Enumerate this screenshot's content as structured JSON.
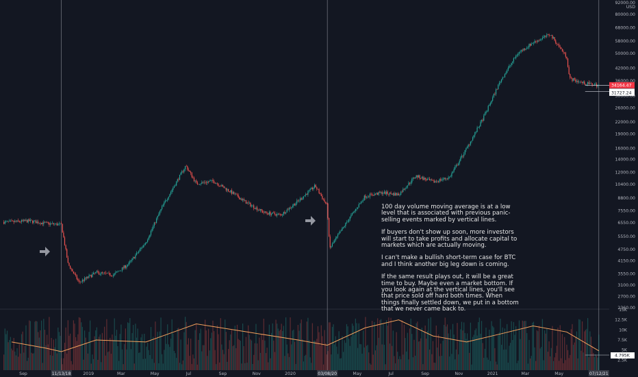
{
  "chart_data": {
    "type": "candlestick",
    "symbol_panel": "BTC price with 100 day volume moving average",
    "axis_unit": "USD",
    "y_axis_labels": [
      "92000.00",
      "80000.00",
      "68000.00",
      "58000.00",
      "50000.00",
      "42000.00",
      "36000.00",
      "30000.00",
      "26000.00",
      "22000.00",
      "19000.00",
      "16000.00",
      "14000.00",
      "12000.00",
      "10400.00",
      "8800.00",
      "7550.00",
      "6550.00",
      "5550.00",
      "4750.00",
      "4150.00",
      "3550.00",
      "3100.00",
      "2700.00",
      "2360.00"
    ],
    "volume_axis_labels": [
      "15K",
      "12.5K",
      "10K",
      "7.5K",
      "5K",
      "2.5K"
    ],
    "x_axis_labels": [
      "Sep",
      "11/13/18",
      "2019",
      "Mar",
      "May",
      "Jul",
      "Sep",
      "Nov",
      "2020",
      "03/08/20",
      "May",
      "Jul",
      "Sep",
      "Nov",
      "2021",
      "Mar",
      "May",
      "07/12/21"
    ],
    "price_tags": {
      "current": "34164.47",
      "level_1": "34162.00",
      "level_2": "31727.24",
      "volume_ma": "4.795K"
    },
    "price_path": [
      [
        "2018-08",
        6600
      ],
      [
        "2018-09",
        6700
      ],
      [
        "2018-10",
        6500
      ],
      [
        "2018-11-13",
        6400
      ],
      [
        "2018-11-25",
        4000
      ],
      [
        "2018-12-15",
        3200
      ],
      [
        "2019-01",
        3600
      ],
      [
        "2019-02",
        3500
      ],
      [
        "2019-03",
        4000
      ],
      [
        "2019-04",
        5200
      ],
      [
        "2019-05",
        8000
      ],
      [
        "2019-06-26",
        13000
      ],
      [
        "2019-07",
        10500
      ],
      [
        "2019-08",
        10800
      ],
      [
        "2019-09",
        9500
      ],
      [
        "2019-10",
        8300
      ],
      [
        "2019-11",
        7400
      ],
      [
        "2019-12",
        7200
      ],
      [
        "2020-01",
        8500
      ],
      [
        "2020-02",
        10200
      ],
      [
        "2020-03-08",
        8000
      ],
      [
        "2020-03-12",
        4800
      ],
      [
        "2020-04",
        6800
      ],
      [
        "2020-05",
        9000
      ],
      [
        "2020-06",
        9400
      ],
      [
        "2020-07",
        9200
      ],
      [
        "2020-08",
        11500
      ],
      [
        "2020-09",
        10700
      ],
      [
        "2020-10",
        11300
      ],
      [
        "2020-11",
        16000
      ],
      [
        "2020-12",
        23000
      ],
      [
        "2021-01",
        36000
      ],
      [
        "2021-02",
        50000
      ],
      [
        "2021-03",
        57000
      ],
      [
        "2021-04",
        63000
      ],
      [
        "2021-05",
        48000
      ],
      [
        "2021-05-20",
        37000
      ],
      [
        "2021-06",
        35000
      ],
      [
        "2021-07-12",
        34164
      ]
    ],
    "volume_ma_path": [
      [
        "2018-08",
        7.0
      ],
      [
        "2018-10",
        5.5
      ],
      [
        "2018-11-13",
        4.6
      ],
      [
        "2019-01",
        7.5
      ],
      [
        "2019-04",
        7.0
      ],
      [
        "2019-07",
        11.5
      ],
      [
        "2019-10",
        9.5
      ],
      [
        "2020-01",
        7.5
      ],
      [
        "2020-03-08",
        6.2
      ],
      [
        "2020-05",
        10.5
      ],
      [
        "2020-07",
        12.5
      ],
      [
        "2020-09",
        8.5
      ],
      [
        "2020-11",
        7.0
      ],
      [
        "2021-01",
        9.0
      ],
      [
        "2021-03",
        11.0
      ],
      [
        "2021-05",
        9.5
      ],
      [
        "2021-07-12",
        4.8
      ]
    ],
    "grid": false
  },
  "annotation": {
    "p1": "100 day volume moving average is at a low level that is associated with previous panic-selling events marked by vertical lines.",
    "p2": "If buyers don't show up soon, more investors will start to take profits and allocate capital to markets which are actually moving.",
    "p3": "I can't make a bullish short-term case for BTC and I think another big leg down is coming.",
    "p4": "If the same result plays out, it will be a great time to buy. Maybe even a market bottom. If you look again at the vertical lines, you'll see that price sold off hard both times. When things finally settled down, we put in a bottom that we never came back to."
  },
  "colors": {
    "background": "#131722",
    "up": "#26a69a",
    "down": "#ef5350",
    "volume_ma": "#f5a25d",
    "marker_line": "#9598a1",
    "arrow": "#9598a1",
    "tag_red": "#f23645",
    "tag_white": "#ffffff"
  },
  "icons": {
    "marker_arrow": "arrow-right-icon"
  }
}
